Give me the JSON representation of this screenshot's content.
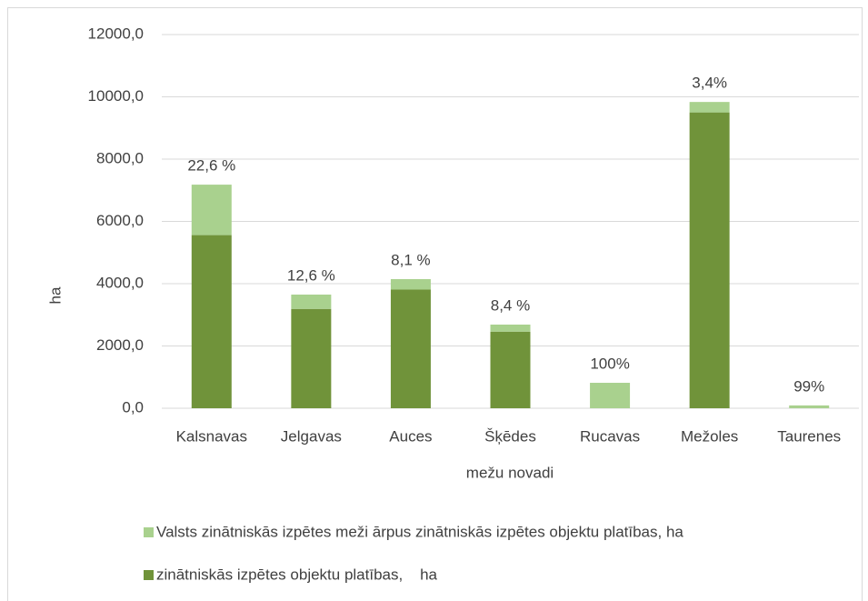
{
  "chart_data": {
    "type": "stacked_bar",
    "categories": [
      "Kalsnavas",
      "Jelgavas",
      "Auces",
      "Šķēdes",
      "Rucavas",
      "Mežoles",
      "Taurenes"
    ],
    "series": [
      {
        "name": "Valsts zinātniskās izpētes meži ārpus zinātniskās izpētes objektu platības, ha",
        "color": "#a9d18e",
        "values": [
          1620,
          460,
          336,
          226,
          817,
          335,
          90
        ]
      },
      {
        "name": "zinātniskās izpētes objektu platības,    ha",
        "color": "#70933a",
        "values": [
          5560,
          3190,
          3810,
          2460,
          0,
          9500,
          1
        ]
      }
    ],
    "annotations": [
      "22,6 %",
      "12,6 %",
      "8,1 %",
      "8,4 %",
      "100%",
      "3,4%",
      "99%"
    ],
    "ylabel": "ha",
    "xlabel": "mežu novadi",
    "ylim": [
      0,
      12000
    ],
    "yticks": [
      {
        "value": 0,
        "label": "0,0"
      },
      {
        "value": 2000,
        "label": "2000,0"
      },
      {
        "value": 4000,
        "label": "4000,0"
      },
      {
        "value": 6000,
        "label": "6000,0"
      },
      {
        "value": 8000,
        "label": "8000,0"
      },
      {
        "value": 10000,
        "label": "10000,0"
      },
      {
        "value": 12000,
        "label": "12000,0"
      }
    ],
    "grid": true
  }
}
